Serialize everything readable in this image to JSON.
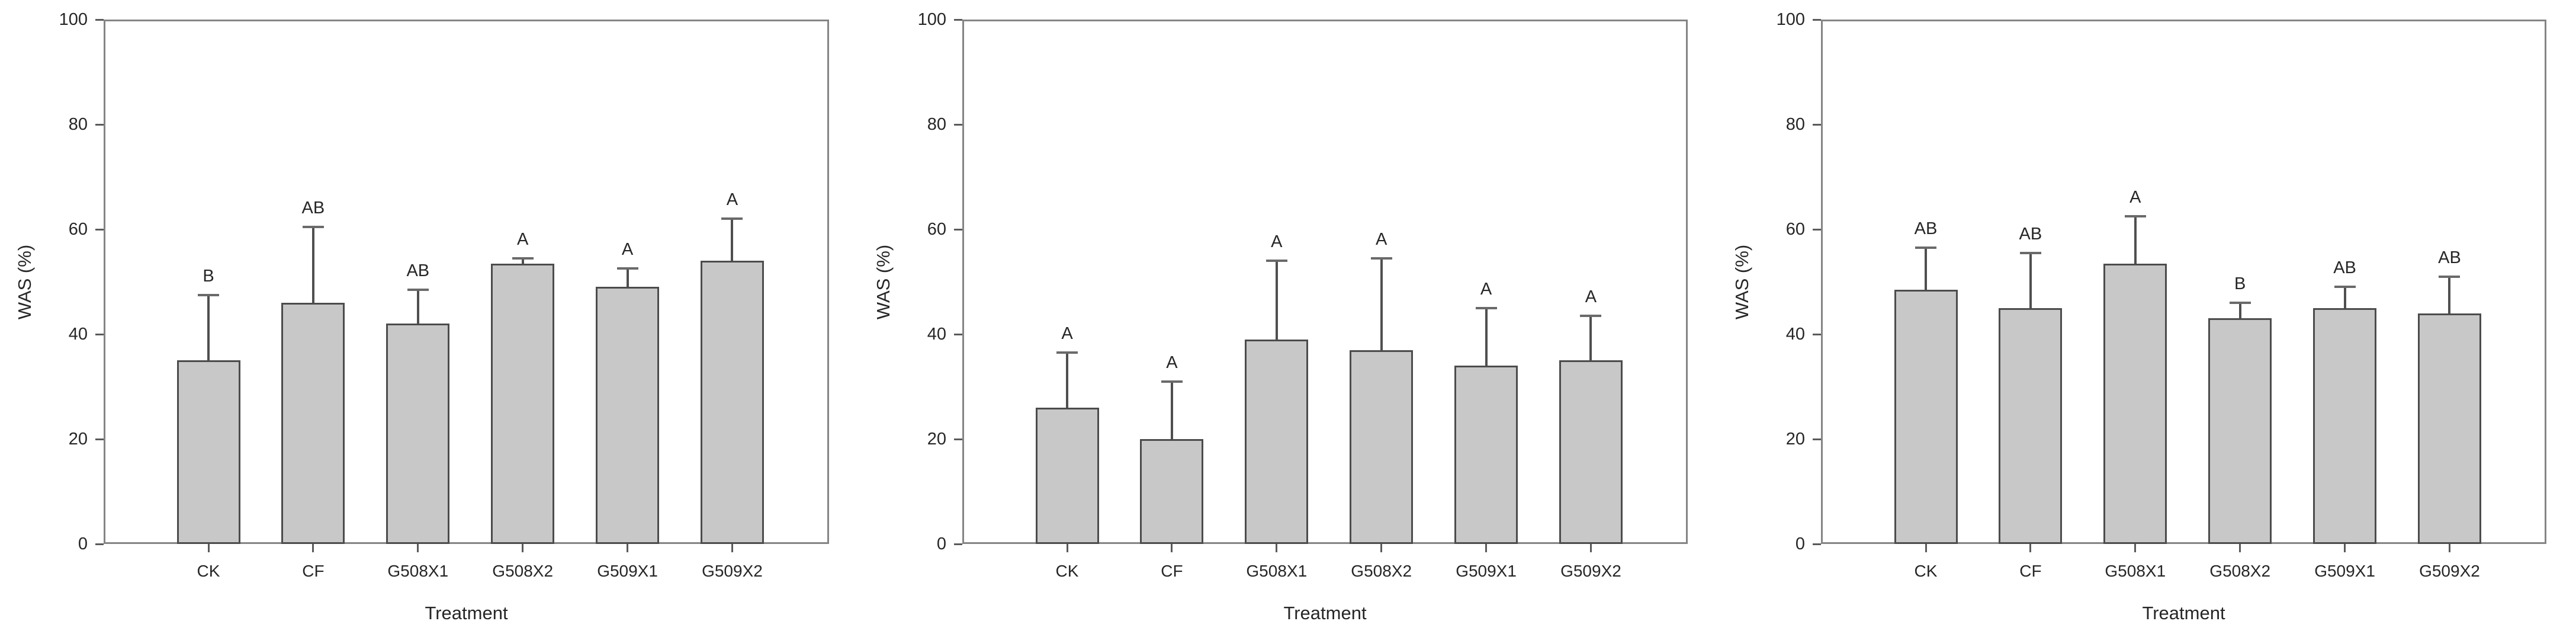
{
  "page": {
    "background": "#ffffff"
  },
  "style": {
    "bar_fill": "#c8c8c8",
    "bar_border": "#4c4c4c",
    "error_color": "#4f4f4f",
    "frame_color": "#858585",
    "tick_color": "#5a5a5a",
    "text_color": "#262626"
  },
  "chart_data": [
    {
      "type": "bar",
      "panel": "left",
      "title": "",
      "xlabel": "Treatment",
      "ylabel": "WAS (%)",
      "ylim": [
        0,
        100
      ],
      "yticks": [
        0,
        20,
        40,
        60,
        80,
        100
      ],
      "categories": [
        "CK",
        "CF",
        "G508X1",
        "G508X2",
        "G509X1",
        "G509X2"
      ],
      "values": [
        35,
        46,
        42,
        53.5,
        49,
        54
      ],
      "error_upper": [
        12.5,
        14.5,
        6.5,
        1,
        3.5,
        8
      ],
      "sig_letters": [
        "B",
        "AB",
        "AB",
        "A",
        "A",
        "A"
      ],
      "grid": false,
      "legend": null
    },
    {
      "type": "bar",
      "panel": "middle",
      "title": "",
      "xlabel": "Treatment",
      "ylabel": "WAS (%)",
      "ylim": [
        0,
        100
      ],
      "yticks": [
        0,
        20,
        40,
        60,
        80,
        100
      ],
      "categories": [
        "CK",
        "CF",
        "G508X1",
        "G508X2",
        "G509X1",
        "G509X2"
      ],
      "values": [
        26,
        20,
        39,
        37,
        34,
        35
      ],
      "error_upper": [
        10.5,
        11,
        15,
        17.5,
        11,
        8.5
      ],
      "sig_letters": [
        "A",
        "A",
        "A",
        "A",
        "A",
        "A"
      ],
      "grid": false,
      "legend": null
    },
    {
      "type": "bar",
      "panel": "right",
      "title": "",
      "xlabel": "Treatment",
      "ylabel": "WAS (%)",
      "ylim": [
        0,
        100
      ],
      "yticks": [
        0,
        20,
        40,
        60,
        80,
        100
      ],
      "categories": [
        "CK",
        "CF",
        "G508X1",
        "G508X2",
        "G509X1",
        "G509X2"
      ],
      "values": [
        48.5,
        45,
        53.5,
        43,
        45,
        44
      ],
      "error_upper": [
        8,
        10.5,
        9,
        3,
        4,
        7
      ],
      "sig_letters": [
        "AB",
        "AB",
        "A",
        "B",
        "AB",
        "AB"
      ],
      "grid": false,
      "legend": null
    }
  ]
}
